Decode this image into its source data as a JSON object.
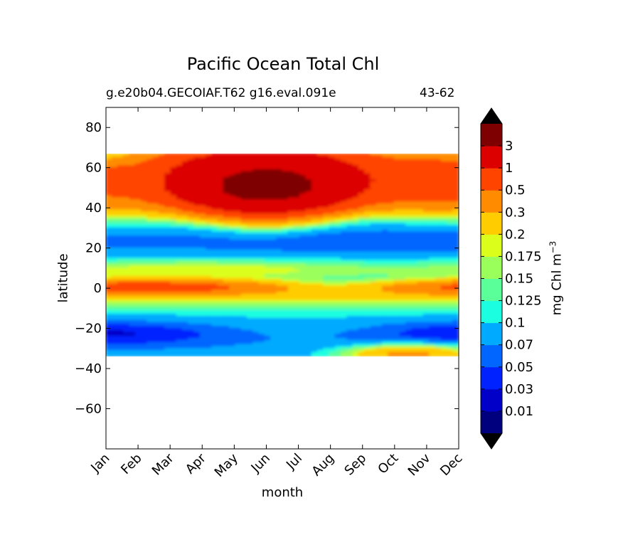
{
  "chart_data": {
    "type": "heatmap",
    "title": "Pacific Ocean Total Chl",
    "subtitle_left": "g.e20b04.GECOIAF.T62 g16.eval.091e",
    "subtitle_right": "43-62",
    "xlabel": "month",
    "ylabel": "latitude",
    "colorbar_label": "mg Chl m",
    "colorbar_label_exponent": "−3",
    "x_categories": [
      "Jan",
      "Feb",
      "Mar",
      "Apr",
      "May",
      "Jun",
      "Jul",
      "Aug",
      "Sep",
      "Oct",
      "Nov",
      "Dec"
    ],
    "xlim": [
      0,
      11
    ],
    "ylim": [
      -80,
      90
    ],
    "y_ticks": [
      80,
      60,
      40,
      20,
      0,
      -20,
      -40,
      -60
    ],
    "y_tick_labels": [
      "80",
      "60",
      "40",
      "20",
      "0",
      "−20",
      "−40",
      "−60"
    ],
    "data_lat_range": [
      -34,
      67
    ],
    "colorbar": {
      "levels": [
        "0.01",
        "0.03",
        "0.05",
        "0.07",
        "0.1",
        "0.125",
        "0.15",
        "0.175",
        "0.2",
        "0.3",
        "0.5",
        "1",
        "3"
      ],
      "colors": [
        "#00007f",
        "#0000c8",
        "#0022ff",
        "#0066ff",
        "#00aaff",
        "#1bffe0",
        "#5bff9a",
        "#9bff5b",
        "#dbff1b",
        "#ffcc00",
        "#ff8c00",
        "#ff4400",
        "#dd0000",
        "#7f0000"
      ],
      "extend": "both",
      "under_color": "#00007f",
      "over_color": "#7f0000"
    },
    "grid": false
  }
}
